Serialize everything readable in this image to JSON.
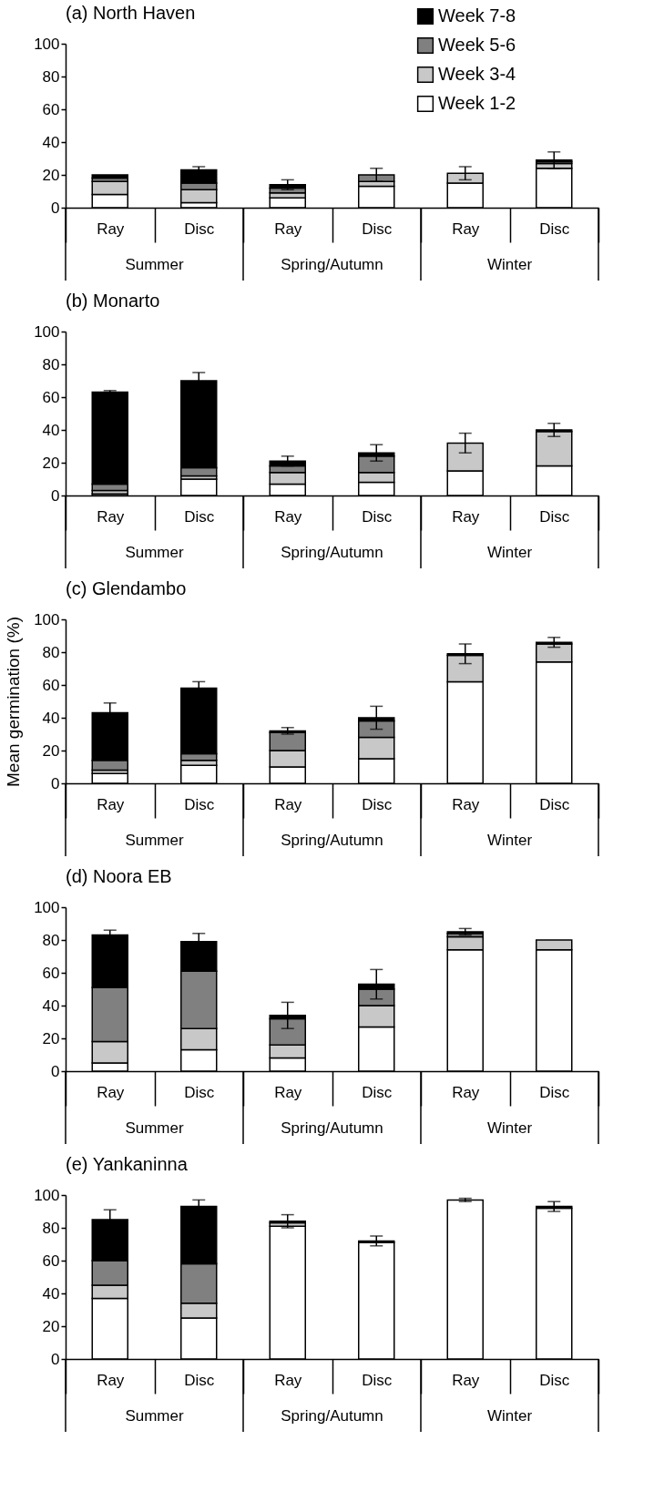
{
  "chart_data": [
    {
      "type": "bar",
      "title": "(a) North Haven",
      "stacked": true,
      "categories": [
        "Ray",
        "Disc",
        "Ray",
        "Disc",
        "Ray",
        "Disc"
      ],
      "annotations": [
        "Summer",
        "Spring/Autumn",
        "Winter"
      ],
      "ylim": [
        0,
        100
      ],
      "yticks": [
        0,
        20,
        40,
        60,
        80,
        100
      ],
      "grid": false,
      "legend": "top right",
      "series": [
        {
          "name": "Week 1-2",
          "color": "#ffffff",
          "values": [
            8,
            3,
            6,
            13,
            15,
            24
          ]
        },
        {
          "name": "Week 3-4",
          "color": "#c8c8c8",
          "values": [
            8,
            8,
            3,
            3,
            6,
            3
          ]
        },
        {
          "name": "Week 5-6",
          "color": "#808080",
          "values": [
            2,
            4,
            3,
            4,
            0,
            1
          ]
        },
        {
          "name": "Week 7-8",
          "color": "#000000",
          "values": [
            2,
            8,
            2,
            0,
            0,
            1
          ],
          "errors": [
            null,
            2,
            3,
            4,
            4,
            5
          ]
        }
      ]
    },
    {
      "type": "bar",
      "title": "(b) Monarto",
      "stacked": true,
      "categories": [
        "Ray",
        "Disc",
        "Ray",
        "Disc",
        "Ray",
        "Disc"
      ],
      "annotations": [
        "Summer",
        "Spring/Autumn",
        "Winter"
      ],
      "ylim": [
        0,
        100
      ],
      "yticks": [
        0,
        20,
        40,
        60,
        80,
        100
      ],
      "grid": false,
      "legend": false,
      "series": [
        {
          "color": "#ffffff",
          "values": [
            1,
            10,
            7,
            8,
            15,
            18
          ]
        },
        {
          "color": "#c8c8c8",
          "values": [
            2,
            2,
            7,
            6,
            17,
            21
          ]
        },
        {
          "color": "#808080",
          "values": [
            4,
            5,
            4,
            10,
            0,
            0
          ]
        },
        {
          "color": "#000000",
          "values": [
            56,
            53,
            3,
            2,
            0,
            1
          ],
          "errors": [
            1,
            5,
            3,
            5,
            6,
            4
          ]
        }
      ]
    },
    {
      "type": "bar",
      "title": "(c) Glendambo",
      "ylabel": "Mean germination (%)",
      "stacked": true,
      "categories": [
        "Ray",
        "Disc",
        "Ray",
        "Disc",
        "Ray",
        "Disc"
      ],
      "annotations": [
        "Summer",
        "Spring/Autumn",
        "Winter"
      ],
      "ylim": [
        0,
        100
      ],
      "yticks": [
        0,
        20,
        40,
        60,
        80,
        100
      ],
      "grid": false,
      "legend": false,
      "series": [
        {
          "color": "#ffffff",
          "values": [
            6,
            11,
            10,
            15,
            62,
            74
          ]
        },
        {
          "color": "#c8c8c8",
          "values": [
            2,
            3,
            10,
            13,
            16,
            11
          ]
        },
        {
          "color": "#808080",
          "values": [
            6,
            4,
            11,
            10,
            0,
            0
          ]
        },
        {
          "color": "#000000",
          "values": [
            29,
            40,
            1,
            2,
            1,
            1
          ],
          "errors": [
            6,
            4,
            2,
            7,
            6,
            3
          ]
        }
      ]
    },
    {
      "type": "bar",
      "title": "(d) Noora EB",
      "stacked": true,
      "categories": [
        "Ray",
        "Disc",
        "Ray",
        "Disc",
        "Ray",
        "Disc"
      ],
      "annotations": [
        "Summer",
        "Spring/Autumn",
        "Winter"
      ],
      "ylim": [
        0,
        100
      ],
      "yticks": [
        0,
        20,
        40,
        60,
        80,
        100
      ],
      "grid": false,
      "legend": false,
      "series": [
        {
          "color": "#ffffff",
          "values": [
            5,
            13,
            8,
            27,
            74,
            74
          ]
        },
        {
          "color": "#c8c8c8",
          "values": [
            13,
            13,
            8,
            13,
            8,
            6
          ]
        },
        {
          "color": "#808080",
          "values": [
            33,
            35,
            16,
            10,
            2,
            0
          ]
        },
        {
          "color": "#000000",
          "values": [
            32,
            18,
            2,
            3,
            1,
            0
          ],
          "errors": [
            3,
            5,
            8,
            9,
            2,
            null
          ]
        }
      ]
    },
    {
      "type": "bar",
      "title": "(e) Yankaninna",
      "stacked": true,
      "categories": [
        "Ray",
        "Disc",
        "Ray",
        "Disc",
        "Ray",
        "Disc"
      ],
      "annotations": [
        "Summer",
        "Spring/Autumn",
        "Winter"
      ],
      "ylim": [
        0,
        100
      ],
      "yticks": [
        0,
        20,
        40,
        60,
        80,
        100
      ],
      "grid": false,
      "legend": false,
      "series": [
        {
          "color": "#ffffff",
          "values": [
            37,
            25,
            81,
            71,
            97,
            92
          ]
        },
        {
          "color": "#c8c8c8",
          "values": [
            8,
            9,
            2,
            0,
            0,
            0
          ]
        },
        {
          "color": "#808080",
          "values": [
            15,
            24,
            0,
            0,
            0,
            0
          ]
        },
        {
          "color": "#000000",
          "values": [
            25,
            35,
            1,
            1,
            0,
            1
          ],
          "errors": [
            6,
            4,
            4,
            3,
            1,
            3
          ]
        }
      ]
    }
  ]
}
